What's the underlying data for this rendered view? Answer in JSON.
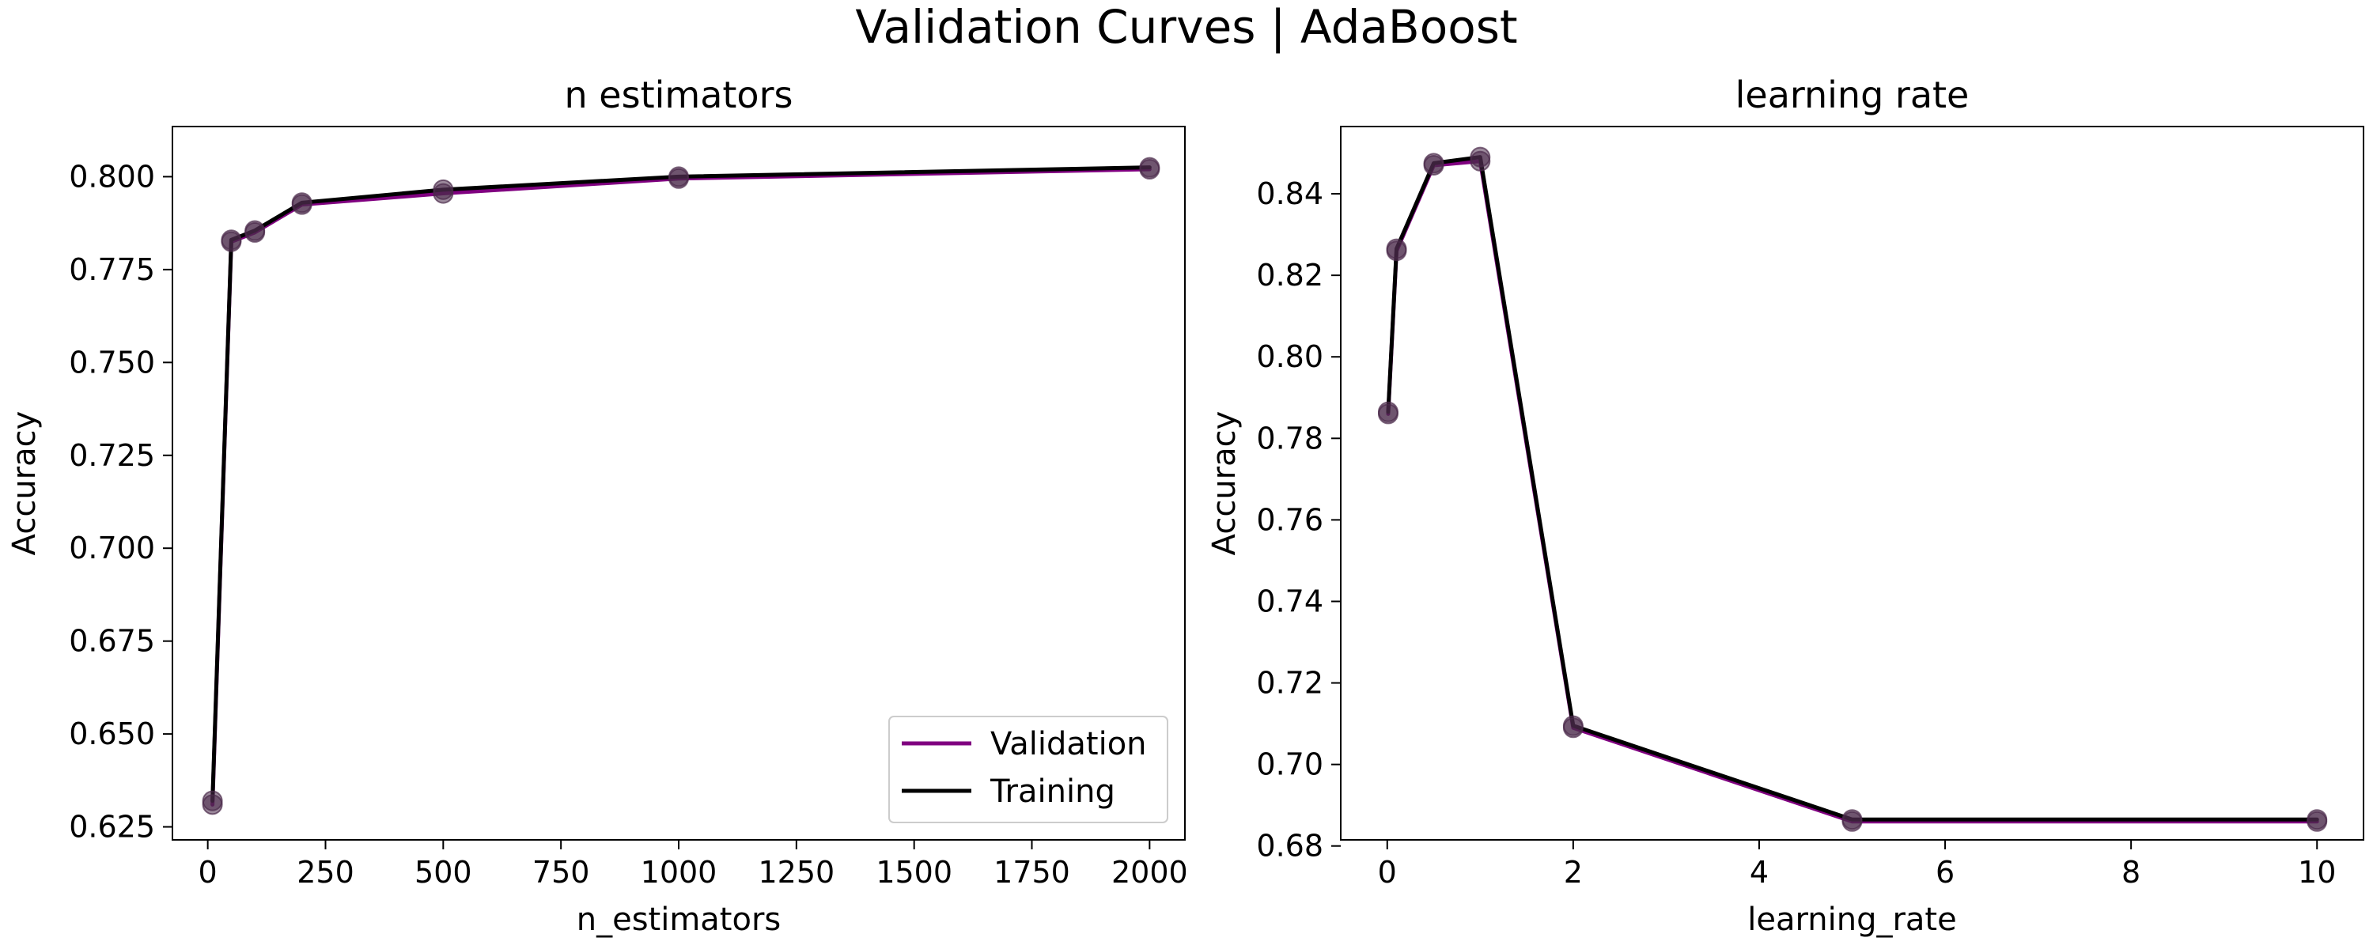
{
  "suptitle": "Validation Curves | AdaBoost",
  "colors": {
    "validation": "#800080",
    "training": "#000000",
    "marker": "#4a2a4a"
  },
  "chart_data": [
    {
      "type": "line",
      "title": "n estimators",
      "xlabel": "n_estimators",
      "ylabel": "Accuracy",
      "xlim": [
        -75,
        2075
      ],
      "ylim": [
        0.6215,
        0.8135
      ],
      "xticks": [
        0,
        250,
        500,
        750,
        1000,
        1250,
        1500,
        1750,
        2000
      ],
      "xtick_labels": [
        "0",
        "250",
        "500",
        "750",
        "1000",
        "1250",
        "1500",
        "1750",
        "2000"
      ],
      "yticks": [
        0.625,
        0.65,
        0.675,
        0.7,
        0.725,
        0.75,
        0.775,
        0.8
      ],
      "ytick_labels": [
        "0.625",
        "0.650",
        "0.675",
        "0.700",
        "0.725",
        "0.750",
        "0.775",
        "0.800"
      ],
      "legend": {
        "position": "lower-right",
        "entries": [
          "Validation",
          "Training"
        ]
      },
      "x": [
        10,
        50,
        100,
        200,
        500,
        1000,
        2000
      ],
      "series": [
        {
          "name": "Validation",
          "values": [
            0.631,
            0.7825,
            0.785,
            0.7925,
            0.7955,
            0.7995,
            0.802
          ]
        },
        {
          "name": "Training",
          "values": [
            0.632,
            0.783,
            0.7855,
            0.793,
            0.7965,
            0.8,
            0.8025
          ]
        }
      ]
    },
    {
      "type": "line",
      "title": "learning rate",
      "xlabel": "learning_rate",
      "ylabel": "Accuracy",
      "xlim": [
        -0.5,
        10.5
      ],
      "ylim": [
        0.6815,
        0.8565
      ],
      "xticks": [
        0,
        2,
        4,
        6,
        8,
        10
      ],
      "xtick_labels": [
        "0",
        "2",
        "4",
        "6",
        "8",
        "10"
      ],
      "yticks": [
        0.68,
        0.7,
        0.72,
        0.74,
        0.76,
        0.78,
        0.8,
        0.82,
        0.84
      ],
      "ytick_labels": [
        "0.68",
        "0.70",
        "0.72",
        "0.74",
        "0.76",
        "0.78",
        "0.80",
        "0.82",
        "0.84"
      ],
      "x": [
        0.01,
        0.1,
        0.5,
        1,
        2,
        5,
        10
      ],
      "series": [
        {
          "name": "Validation",
          "values": [
            0.786,
            0.826,
            0.847,
            0.848,
            0.709,
            0.686,
            0.686
          ]
        },
        {
          "name": "Training",
          "values": [
            0.7865,
            0.8265,
            0.8475,
            0.849,
            0.7095,
            0.6865,
            0.6865
          ]
        }
      ]
    }
  ]
}
